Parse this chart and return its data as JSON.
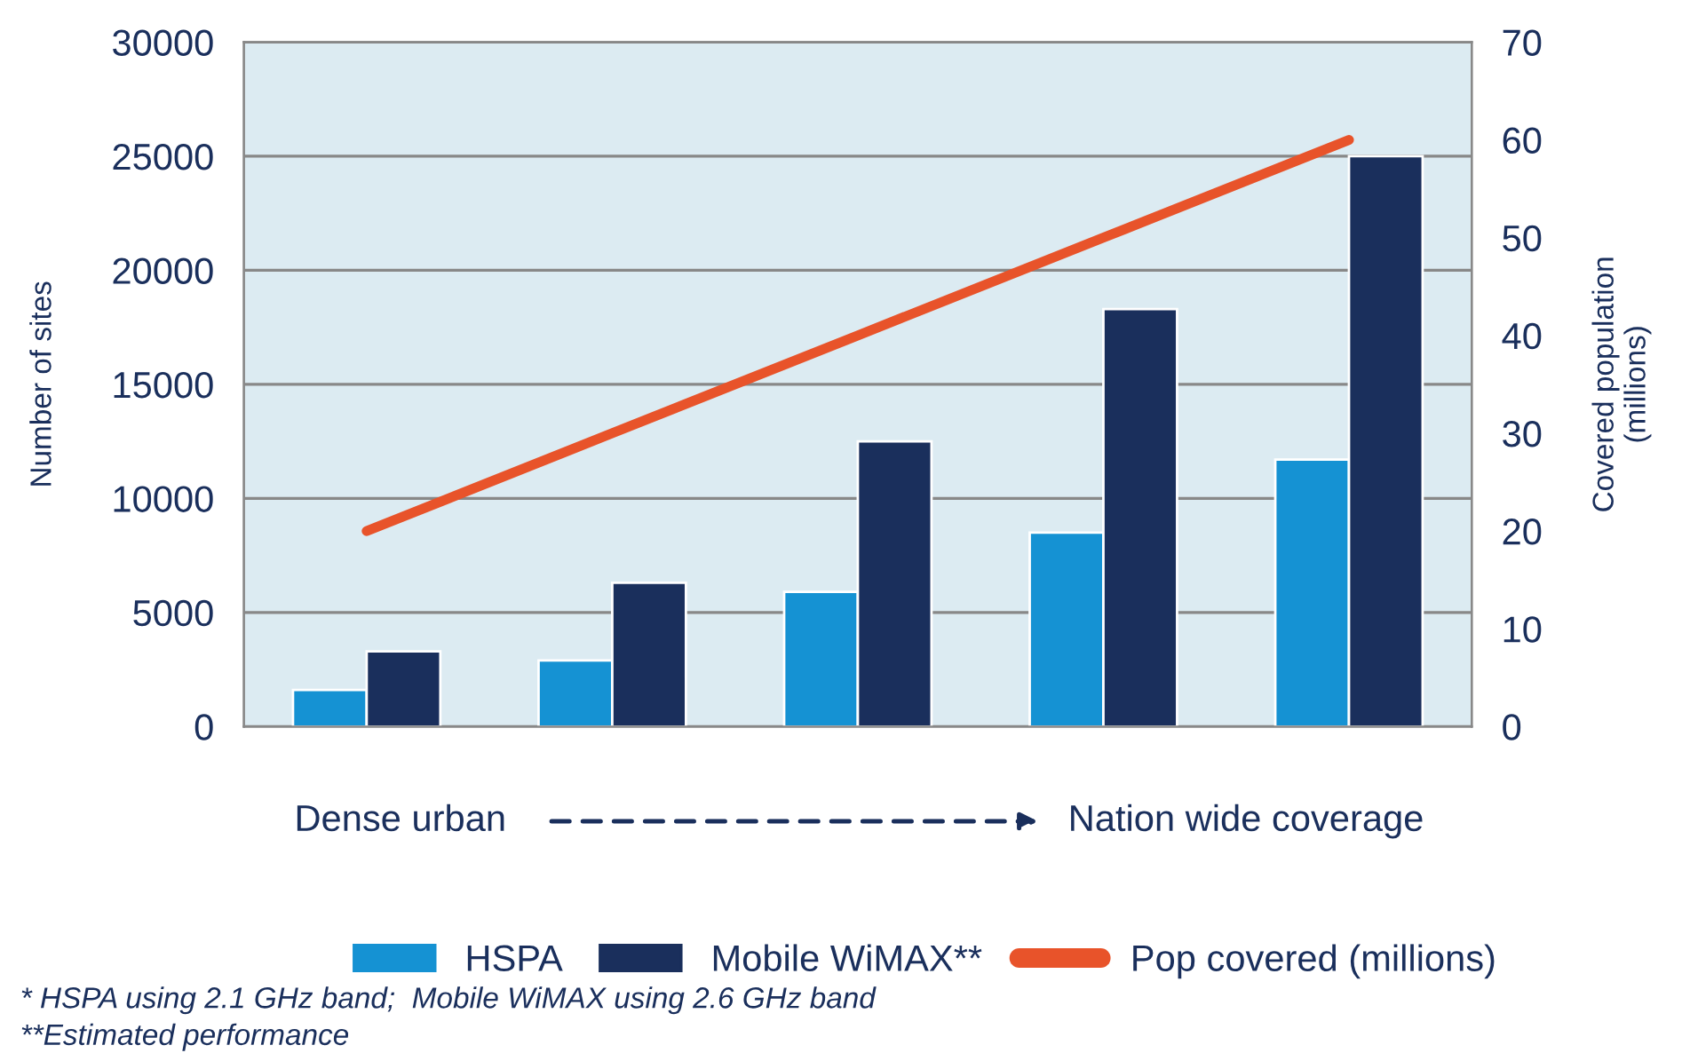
{
  "chart_data": {
    "type": "bar",
    "categories": [
      null,
      null,
      null,
      null,
      null
    ],
    "series": [
      {
        "name": "HSPA",
        "color": "#1592d3",
        "values": [
          1600,
          2900,
          5900,
          8500,
          11700
        ]
      },
      {
        "name": "Mobile WiMAX**",
        "color": "#1a2f5c",
        "values": [
          3300,
          6300,
          12500,
          18300,
          25000
        ]
      },
      {
        "name": "Pop covered (millions)",
        "color": "#e8532a",
        "type": "line",
        "axis": "y2",
        "values": [
          20,
          30,
          40,
          50,
          60
        ]
      }
    ],
    "ylabel": "Number of sites",
    "y2label": "Covered population\n(millions)",
    "ylim": [
      0,
      30000
    ],
    "yticks": [
      0,
      5000,
      10000,
      15000,
      20000,
      25000,
      30000
    ],
    "y2lim": [
      0,
      70
    ],
    "y2ticks": [
      0,
      10,
      20,
      30,
      40,
      50,
      60,
      70
    ],
    "grid": "y",
    "legend": "bottom",
    "annotations": [
      "Dense urban",
      "Nation wide coverage",
      "* HSPA using 2.1 GHz band;  Mobile WiMAX using 2.6 GHz band",
      "**Estimated performance"
    ]
  }
}
